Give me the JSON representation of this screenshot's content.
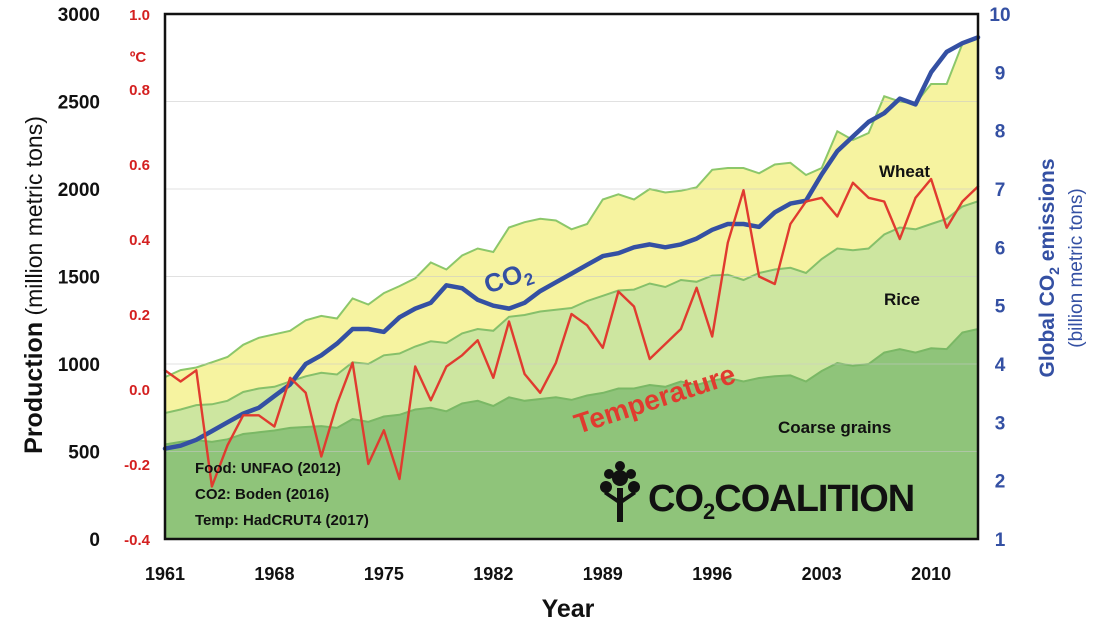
{
  "chart_data": {
    "type": "area",
    "xlabel": "Year",
    "ylabel_left": {
      "prefix": "Production",
      "suffix": " (million metric tons)"
    },
    "ylabel_temp": "ºC",
    "ylabel_right": {
      "main": "Global CO",
      "sub": "2",
      "rest": " emissions",
      "line2": "(billion metric tons)"
    },
    "x_ticks": [
      "1961",
      "1968",
      "1975",
      "1982",
      "1989",
      "1996",
      "2003",
      "2010"
    ],
    "y_left_ticks": [
      "0",
      "500",
      "1000",
      "1500",
      "2000",
      "2500",
      "3000"
    ],
    "y_temp_ticks": [
      "-0.4",
      "-0.2",
      "0.0",
      "0.2",
      "0.4",
      "0.6",
      "0.8",
      "1.0"
    ],
    "y_right_ticks": [
      "1",
      "2",
      "3",
      "4",
      "5",
      "6",
      "7",
      "8",
      "9",
      "10"
    ],
    "ylim_left": [
      0,
      3000
    ],
    "ylim_temp": [
      -0.4,
      1.0
    ],
    "ylim_right": [
      1,
      10
    ],
    "xlim": [
      1961,
      2013
    ],
    "grid": "horizontal",
    "years": [
      1961,
      1962,
      1963,
      1964,
      1965,
      1966,
      1967,
      1968,
      1969,
      1970,
      1971,
      1972,
      1973,
      1974,
      1975,
      1976,
      1977,
      1978,
      1979,
      1980,
      1981,
      1982,
      1983,
      1984,
      1985,
      1986,
      1987,
      1988,
      1989,
      1990,
      1991,
      1992,
      1993,
      1994,
      1995,
      1996,
      1997,
      1998,
      1999,
      2000,
      2001,
      2002,
      2003,
      2004,
      2005,
      2006,
      2007,
      2008,
      2009,
      2010,
      2011,
      2012,
      2013
    ],
    "series": [
      {
        "name": "Coarse grains",
        "axis": "left",
        "color": "#8fc47a",
        "values": [
          540,
          555,
          565,
          555,
          570,
          600,
          610,
          620,
          635,
          640,
          645,
          635,
          685,
          670,
          700,
          710,
          740,
          750,
          730,
          775,
          790,
          760,
          810,
          790,
          800,
          810,
          795,
          820,
          835,
          860,
          860,
          880,
          870,
          900,
          880,
          905,
          920,
          900,
          920,
          930,
          935,
          900,
          960,
          1005,
          990,
          1000,
          1065,
          1085,
          1065,
          1090,
          1085,
          1180,
          1200
        ]
      },
      {
        "name": "Rice",
        "axis": "left",
        "color": "#cde6a0",
        "values": [
          720,
          740,
          765,
          770,
          790,
          840,
          860,
          870,
          900,
          930,
          950,
          940,
          1010,
          1000,
          1050,
          1060,
          1100,
          1130,
          1120,
          1175,
          1200,
          1190,
          1270,
          1280,
          1300,
          1310,
          1320,
          1360,
          1390,
          1420,
          1425,
          1460,
          1440,
          1480,
          1470,
          1505,
          1510,
          1480,
          1520,
          1540,
          1550,
          1520,
          1600,
          1660,
          1650,
          1660,
          1740,
          1780,
          1770,
          1800,
          1830,
          1900,
          1930
        ]
      },
      {
        "name": "Wheat",
        "axis": "left",
        "color": "#f6f3a0",
        "values": [
          925,
          965,
          980,
          1010,
          1040,
          1110,
          1150,
          1170,
          1190,
          1250,
          1275,
          1260,
          1375,
          1340,
          1405,
          1445,
          1490,
          1580,
          1540,
          1620,
          1660,
          1640,
          1780,
          1810,
          1830,
          1820,
          1770,
          1800,
          1940,
          1970,
          1940,
          2000,
          1980,
          1990,
          2010,
          2110,
          2120,
          2120,
          2090,
          2140,
          2150,
          2080,
          2120,
          2330,
          2280,
          2320,
          2530,
          2500,
          2490,
          2600,
          2600,
          2830,
          2860
        ]
      },
      {
        "name": "CO",
        "name_sub": "2",
        "axis": "right",
        "color": "#3450a3",
        "values": [
          2.55,
          2.6,
          2.7,
          2.85,
          3.0,
          3.15,
          3.25,
          3.45,
          3.65,
          4.0,
          4.15,
          4.35,
          4.6,
          4.6,
          4.55,
          4.8,
          4.95,
          5.05,
          5.35,
          5.3,
          5.1,
          5.0,
          4.95,
          5.05,
          5.25,
          5.4,
          5.55,
          5.7,
          5.85,
          5.9,
          6.0,
          6.05,
          6.0,
          6.05,
          6.15,
          6.3,
          6.4,
          6.4,
          6.35,
          6.6,
          6.75,
          6.8,
          7.25,
          7.65,
          7.9,
          8.15,
          8.3,
          8.55,
          8.45,
          9.0,
          9.35,
          9.5,
          9.6
        ]
      },
      {
        "name": "Temperature",
        "axis": "temp",
        "color": "#e03b2f",
        "values": [
          0.05,
          0.02,
          0.05,
          -0.26,
          -0.15,
          -0.07,
          -0.07,
          -0.1,
          0.03,
          -0.01,
          -0.18,
          -0.04,
          0.07,
          -0.2,
          -0.11,
          -0.24,
          0.06,
          -0.03,
          0.06,
          0.09,
          0.13,
          0.03,
          0.18,
          0.04,
          -0.01,
          0.07,
          0.2,
          0.17,
          0.11,
          0.26,
          0.22,
          0.08,
          0.12,
          0.16,
          0.27,
          0.14,
          0.39,
          0.53,
          0.3,
          0.28,
          0.44,
          0.5,
          0.51,
          0.46,
          0.55,
          0.51,
          0.5,
          0.4,
          0.51,
          0.56,
          0.43,
          0.5,
          0.54
        ]
      }
    ],
    "annotations": {
      "co2": {
        "main": "CO",
        "sub": "2"
      },
      "temperature": "Temperature",
      "wheat": "Wheat",
      "rice": "Rice",
      "coarse_grains": "Coarse grains"
    },
    "sources": [
      "Food: UNFAO (2012)",
      "CO2: Boden (2016)",
      "Temp: HadCRUT4 (2017)"
    ],
    "logo": {
      "main": "CO",
      "sub": "2",
      "rest": "COALITION"
    },
    "colors": {
      "temp_axis": "#d42020",
      "co2_axis": "#3450a3",
      "grid": "#c9c9c9"
    }
  }
}
